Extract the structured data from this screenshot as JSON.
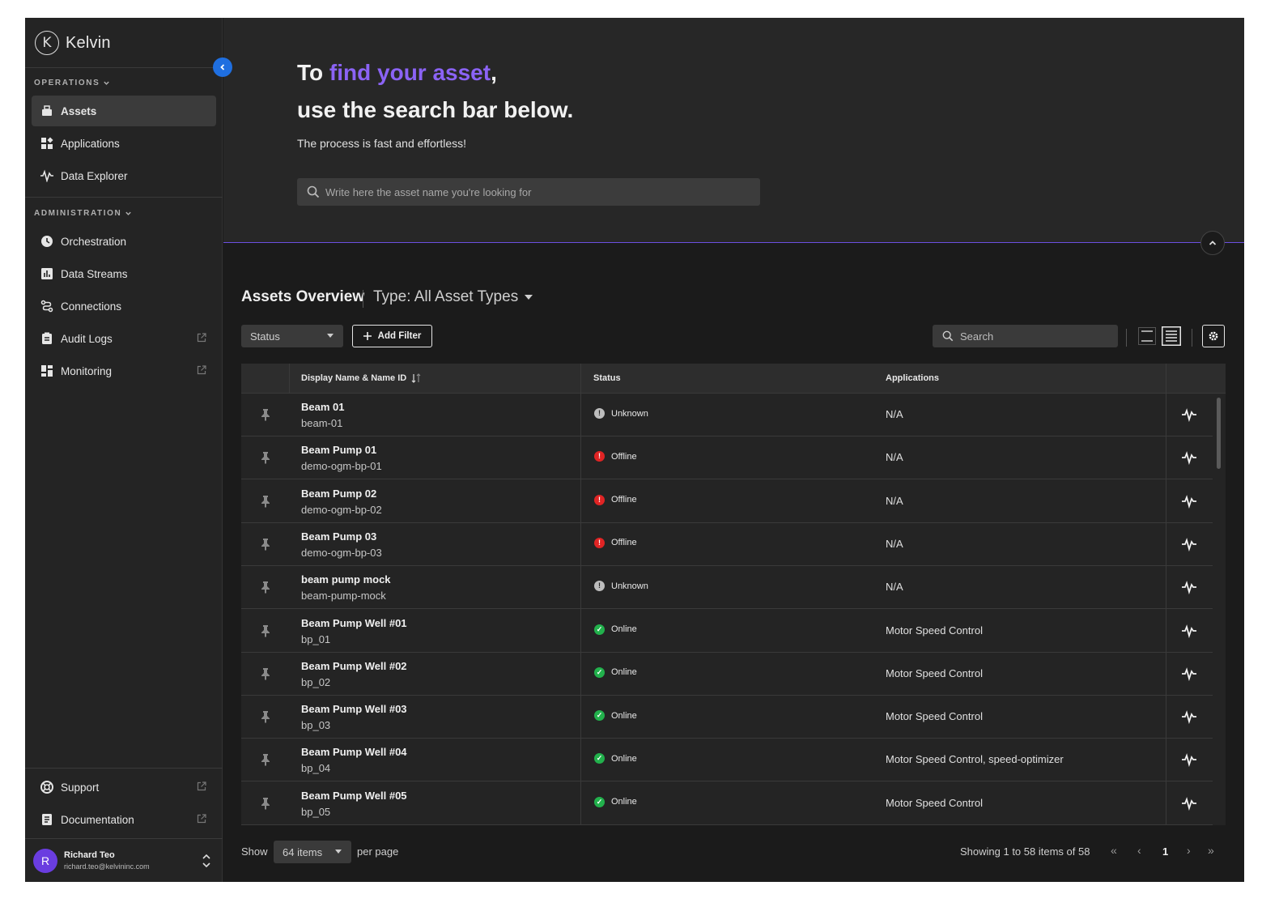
{
  "brand": {
    "name": "Kelvin",
    "mark": "K"
  },
  "colors": {
    "accent": "#8b63f5",
    "online": "#22b14c",
    "offline": "#e02424",
    "unknown": "#bdbdbd",
    "primary": "#1f6fe0"
  },
  "sidebar": {
    "operations_label": "OPERATIONS",
    "administration_label": "ADMINISTRATION",
    "operations": [
      {
        "label": "Assets",
        "icon": "assets-icon",
        "active": true
      },
      {
        "label": "Applications",
        "icon": "applications-icon"
      },
      {
        "label": "Data Explorer",
        "icon": "data-explorer-icon"
      }
    ],
    "administration": [
      {
        "label": "Orchestration",
        "icon": "orchestration-icon"
      },
      {
        "label": "Data Streams",
        "icon": "data-streams-icon"
      },
      {
        "label": "Connections",
        "icon": "connections-icon"
      },
      {
        "label": "Audit Logs",
        "icon": "audit-logs-icon",
        "external": true
      },
      {
        "label": "Monitoring",
        "icon": "monitoring-icon",
        "external": true
      }
    ],
    "bottom": [
      {
        "label": "Support",
        "icon": "support-icon",
        "external": true
      },
      {
        "label": "Documentation",
        "icon": "documentation-icon",
        "external": true
      }
    ],
    "user": {
      "initial": "R",
      "name": "Richard Teo",
      "email": "richard.teo@kelvininc.com"
    }
  },
  "hero": {
    "title_prefix": "To ",
    "title_accent": "find your asset",
    "title_suffix": ",",
    "title_line2": "use the search bar below.",
    "subtitle": "The process is fast and effortless!",
    "search_placeholder": "Write here the asset name you're looking for"
  },
  "overview": {
    "title": "Assets Overview",
    "type_filter": "Type: All Asset Types",
    "status_filter": "Status",
    "add_filter": "Add Filter",
    "search_placeholder": "Search"
  },
  "table": {
    "columns": {
      "name": "Display Name & Name ID",
      "status": "Status",
      "applications": "Applications"
    },
    "rows": [
      {
        "name": "Beam 01",
        "id": "beam-01",
        "status": "Unknown",
        "apps": "N/A"
      },
      {
        "name": "Beam Pump 01",
        "id": "demo-ogm-bp-01",
        "status": "Offline",
        "apps": "N/A"
      },
      {
        "name": "Beam Pump 02",
        "id": "demo-ogm-bp-02",
        "status": "Offline",
        "apps": "N/A"
      },
      {
        "name": "Beam Pump 03",
        "id": "demo-ogm-bp-03",
        "status": "Offline",
        "apps": "N/A"
      },
      {
        "name": "beam pump mock",
        "id": "beam-pump-mock",
        "status": "Unknown",
        "apps": "N/A"
      },
      {
        "name": "Beam Pump Well #01",
        "id": "bp_01",
        "status": "Online",
        "apps": "Motor Speed Control"
      },
      {
        "name": "Beam Pump Well #02",
        "id": "bp_02",
        "status": "Online",
        "apps": "Motor Speed Control"
      },
      {
        "name": "Beam Pump Well #03",
        "id": "bp_03",
        "status": "Online",
        "apps": "Motor Speed Control"
      },
      {
        "name": "Beam Pump Well #04",
        "id": "bp_04",
        "status": "Online",
        "apps": "Motor Speed Control, speed-optimizer"
      },
      {
        "name": "Beam Pump Well #05",
        "id": "bp_05",
        "status": "Online",
        "apps": "Motor Speed Control"
      }
    ]
  },
  "pagination": {
    "show_label": "Show",
    "per_page_value": "64 items",
    "per_page_label": "per page",
    "summary": "Showing 1 to 58 items of 58",
    "first": "«",
    "prev": "‹",
    "current": "1",
    "next": "›",
    "last": "»"
  }
}
